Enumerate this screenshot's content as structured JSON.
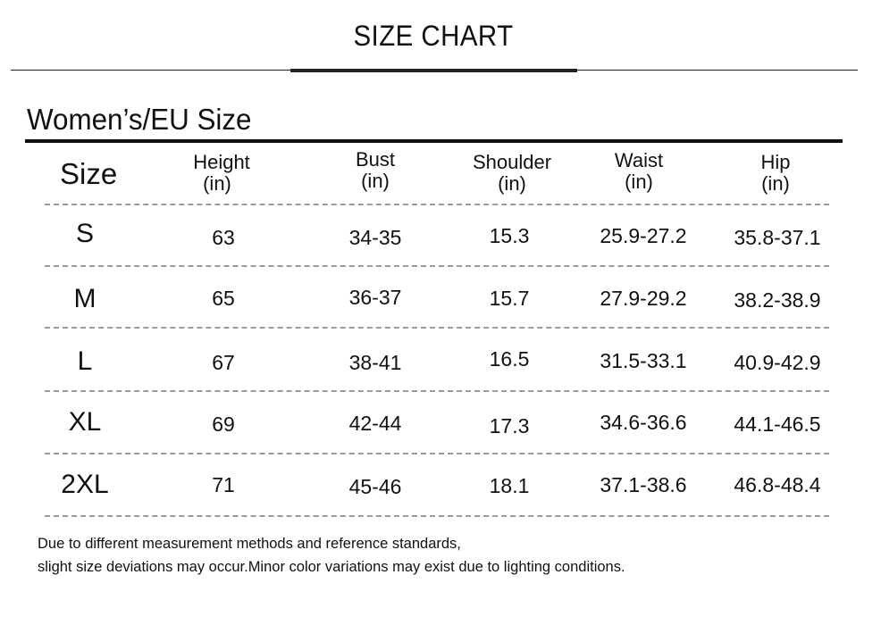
{
  "title": "SIZE CHART",
  "section_title": "Women’s/EU Size",
  "headers": {
    "size": "Size",
    "columns": [
      {
        "name": "Height",
        "unit": "(in)"
      },
      {
        "name": "Bust",
        "unit": "(in)"
      },
      {
        "name": "Shoulder",
        "unit": "(in)"
      },
      {
        "name": "Waist",
        "unit": "(in)"
      },
      {
        "name": "Hip",
        "unit": "(in)"
      }
    ]
  },
  "rows": [
    {
      "size": "S",
      "height": "63",
      "bust": "34-35",
      "shoulder": "15.3",
      "waist": "25.9-27.2",
      "hip": "35.8-37.1"
    },
    {
      "size": "M",
      "height": "65",
      "bust": "36-37",
      "shoulder": "15.7",
      "waist": "27.9-29.2",
      "hip": "38.2-38.9"
    },
    {
      "size": "L",
      "height": "67",
      "bust": "38-41",
      "shoulder": "16.5",
      "waist": "31.5-33.1",
      "hip": "40.9-42.9"
    },
    {
      "size": "XL",
      "height": "69",
      "bust": "42-44",
      "shoulder": "17.3",
      "waist": "34.6-36.6",
      "hip": "44.1-46.5"
    },
    {
      "size": "2XL",
      "height": "71",
      "bust": "45-46",
      "shoulder": "18.1",
      "waist": "37.1-38.6",
      "hip": "46.8-48.4"
    }
  ],
  "notes": {
    "line1": "Due to different measurement methods and reference standards,",
    "line2": "slight size deviations may occur.Minor color variations may exist due to lighting conditions."
  }
}
